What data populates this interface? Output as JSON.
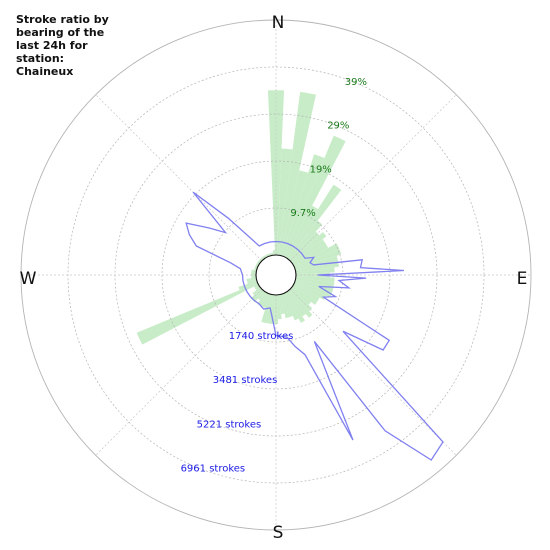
{
  "title_lines": [
    "Stroke ratio by",
    "bearing of the",
    "last 24h for",
    "station:",
    "Chaineux"
  ],
  "compass": {
    "north": "N",
    "east": "E",
    "south": "S",
    "west": "W"
  },
  "colors": {
    "ratio_fill": "#c8ecc8",
    "count_line": "#8080f0",
    "pct_label": "#1a7a1a",
    "count_label": "#1a1ae6",
    "grid": "#b4b4b4",
    "spoke": "#c8c8c8"
  },
  "chart_data": {
    "type": "polar",
    "direction": "clockwise from north",
    "bin_width_deg": 5,
    "ratio_rings": {
      "labels": [
        "9.7%",
        "19%",
        "29%",
        "39%"
      ],
      "values": [
        9.7,
        19.4,
        29.1,
        38.8
      ],
      "label_bearing_deg": 22
    },
    "count_rings": {
      "labels": [
        "1740 strokes",
        "3481 strokes",
        "5221 strokes",
        "6961 strokes"
      ],
      "values": [
        1740,
        3481,
        5221,
        6961
      ]
    },
    "series": [
      {
        "type": "bar",
        "unit": "%",
        "bearings_deg": [
          0,
          5,
          10,
          15,
          20,
          25,
          30,
          35,
          40,
          45,
          50,
          55,
          60,
          65,
          70,
          75,
          80,
          85,
          90,
          95,
          100,
          105,
          110,
          115,
          120,
          125,
          130,
          135,
          140,
          145,
          150,
          155,
          160,
          165,
          170,
          175,
          180,
          185,
          190,
          195,
          200,
          205,
          210,
          215,
          220,
          225,
          230,
          235,
          240,
          245,
          250,
          255,
          260,
          265,
          270,
          275,
          280,
          285,
          290,
          295,
          300,
          305,
          310,
          315,
          320,
          325,
          330,
          335,
          340,
          345,
          350,
          355
        ],
        "values": [
          34,
          22,
          34,
          18,
          22,
          27,
          12,
          18,
          10,
          8,
          9,
          8,
          8,
          10,
          10,
          9,
          9,
          8,
          7,
          8,
          8,
          8,
          8,
          7,
          6,
          6,
          5,
          6,
          7,
          6,
          7,
          6,
          5,
          5,
          4,
          5,
          6,
          6,
          6,
          6,
          3,
          3,
          3,
          2,
          3,
          3,
          2,
          1,
          1,
          27,
          4,
          2,
          2,
          1,
          1,
          1,
          1,
          0.5,
          0.5,
          0.5,
          0.5,
          0.5,
          0.5,
          0.5,
          0.5,
          0.5,
          0.5,
          0.5,
          0.5,
          0.5,
          0.5,
          1
        ]
      },
      {
        "type": "line",
        "unit": "strokes",
        "bearings_deg": [
          0,
          10,
          20,
          30,
          40,
          50,
          60,
          65,
          70,
          75,
          80,
          85,
          88,
          90,
          92,
          95,
          100,
          105,
          110,
          115,
          120,
          125,
          130,
          135,
          140,
          145,
          150,
          155,
          160,
          165,
          170,
          180,
          190,
          200,
          210,
          220,
          230,
          240,
          250,
          260,
          270,
          280,
          285,
          290,
          295,
          300,
          305,
          310,
          315,
          320,
          330,
          340,
          350
        ],
        "values": [
          500,
          500,
          500,
          500,
          500,
          500,
          500,
          800,
          600,
          700,
          2500,
          2400,
          4000,
          800,
          2600,
          1600,
          2000,
          900,
          1600,
          1200,
          4100,
          4100,
          2500,
          8000,
          8200,
          6300,
          2100,
          6000,
          2400,
          2000,
          1600,
          1500,
          500,
          600,
          500,
          500,
          500,
          500,
          500,
          500,
          500,
          600,
          1000,
          2400,
          2800,
          3100,
          2300,
          1700,
          3600,
          2000,
          500,
          500,
          500
        ]
      }
    ]
  }
}
